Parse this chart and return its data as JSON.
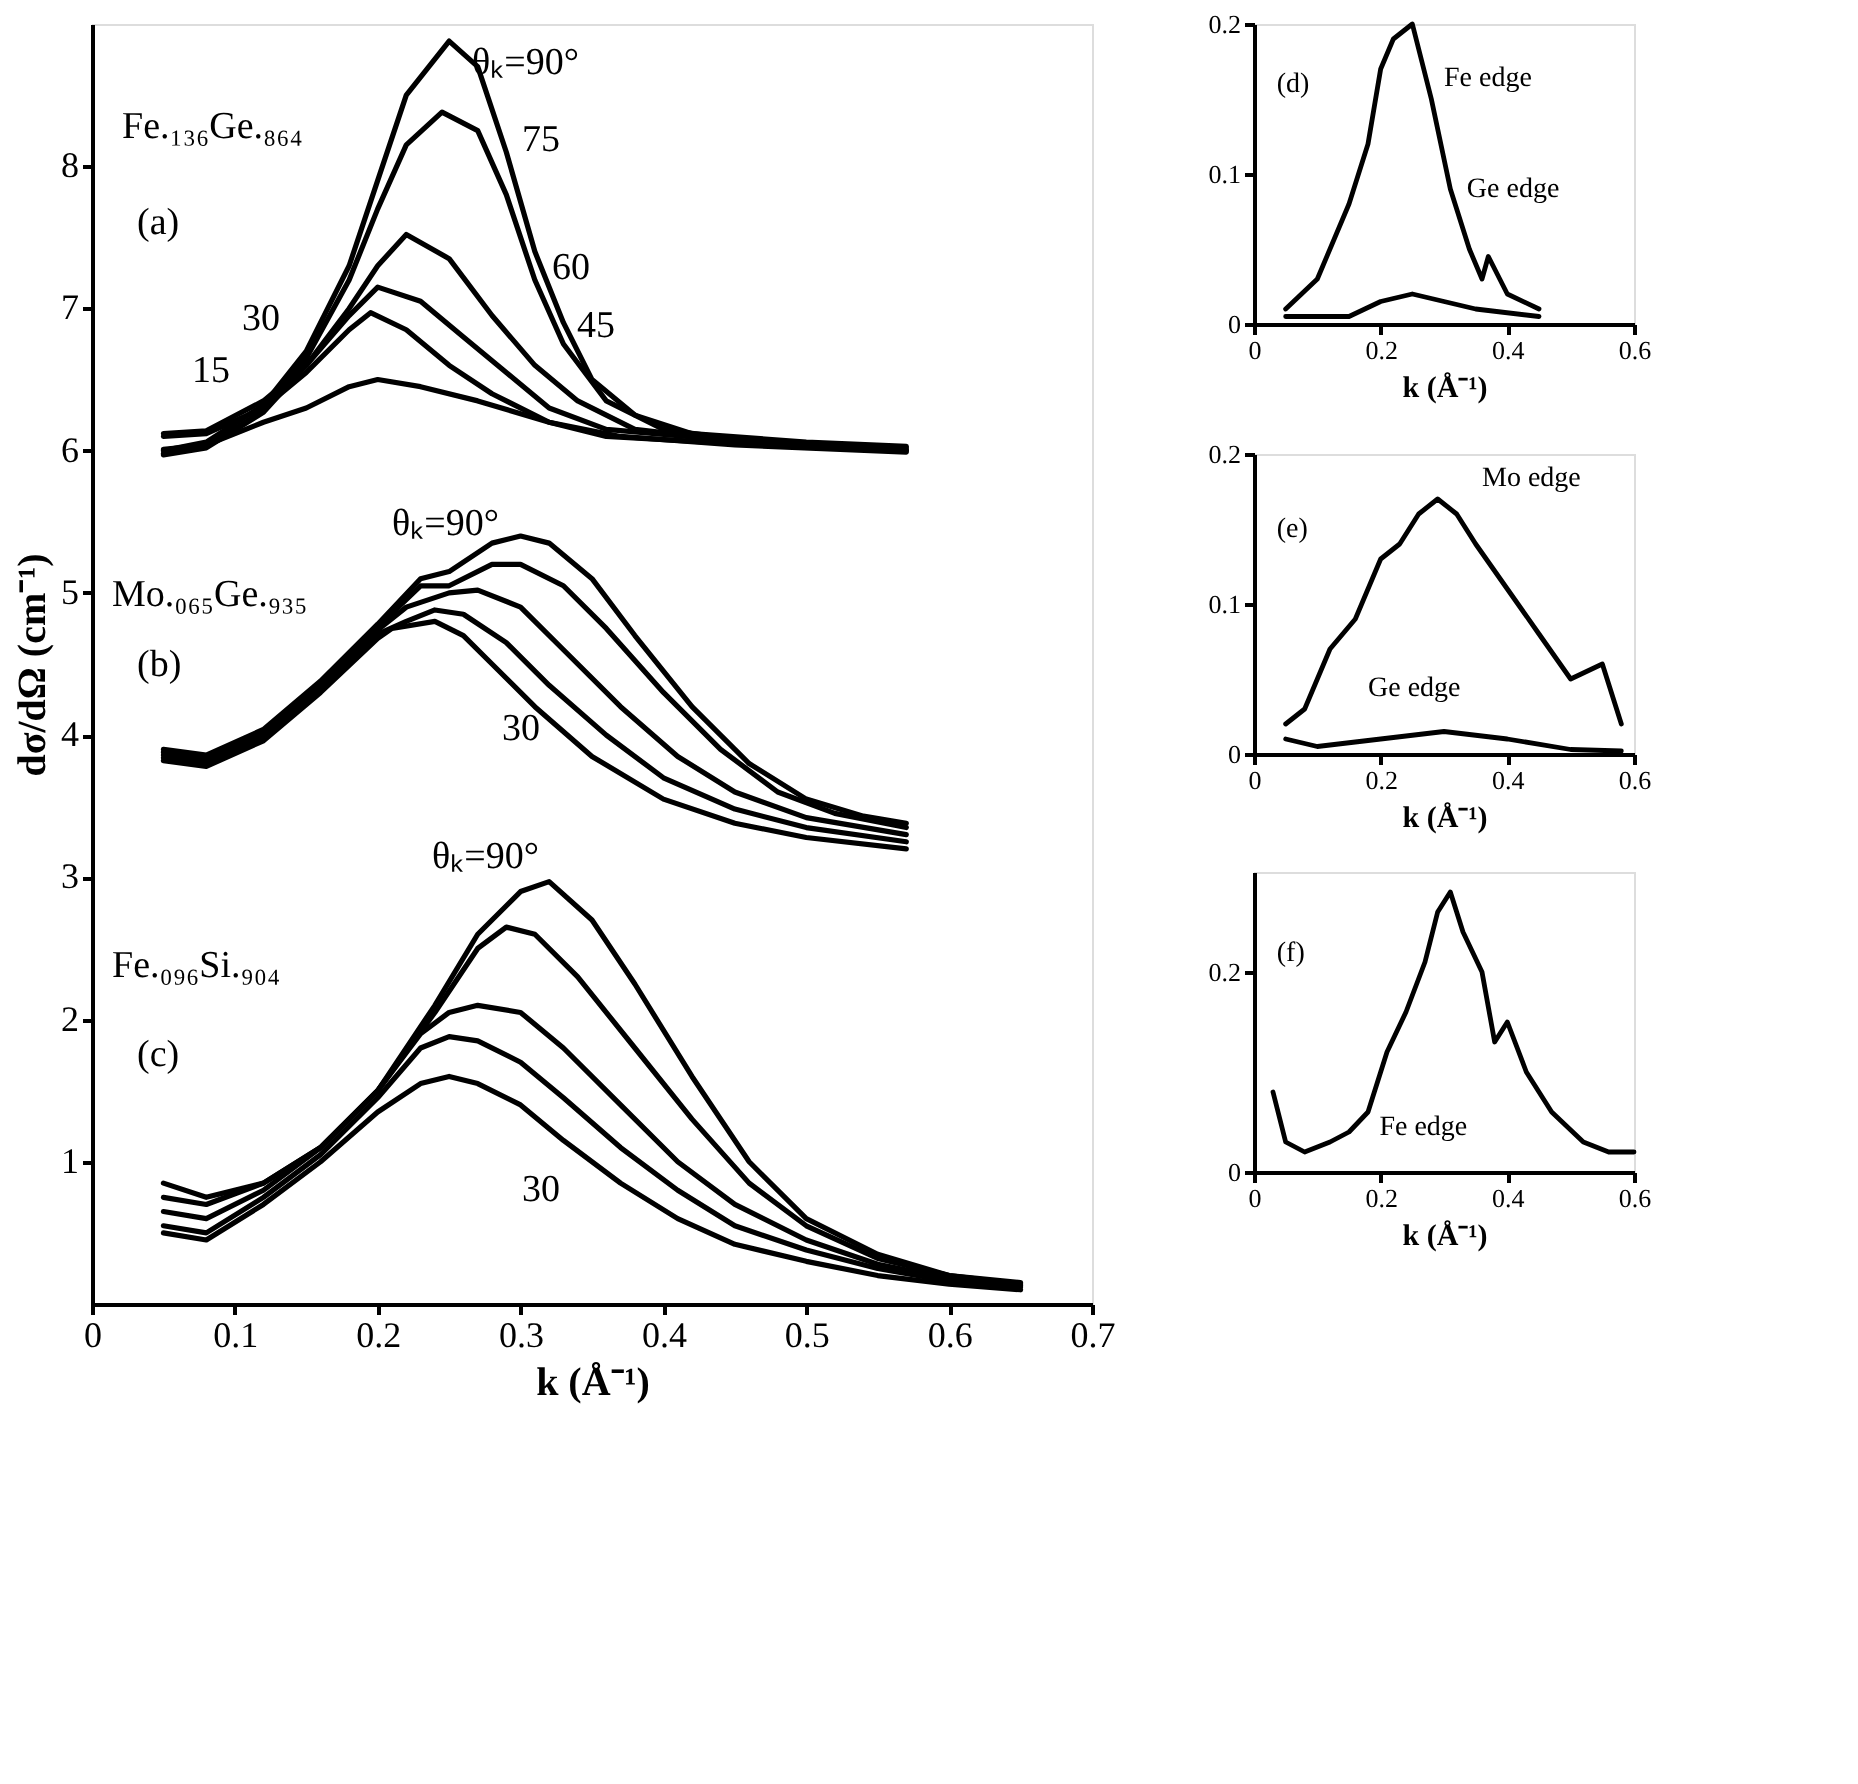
{
  "chart_data": [
    {
      "type": "line",
      "xlabel": "k (Å⁻¹)",
      "ylabel": "dσ/dΩ (cm⁻¹)",
      "xlim": [
        0,
        0.7
      ],
      "ylim": [
        0,
        9
      ],
      "xticks": [
        0,
        0.1,
        0.2,
        0.3,
        0.4,
        0.5,
        0.6,
        0.7
      ],
      "yticks": [
        1,
        2,
        3,
        4,
        5,
        6,
        7,
        8
      ],
      "grid": false,
      "series": [
        {
          "color": "#000000",
          "x": [
            0.05,
            0.08,
            0.12,
            0.15,
            0.18,
            0.2,
            0.22,
            0.25,
            0.27,
            0.29,
            0.31,
            0.33,
            0.35,
            0.38,
            0.42,
            0.5,
            0.57
          ],
          "values": [
            6.0,
            6.06,
            6.32,
            6.7,
            7.3,
            7.9,
            8.5,
            8.88,
            8.7,
            8.1,
            7.4,
            6.9,
            6.5,
            6.25,
            6.12,
            6.06,
            6.03
          ]
        },
        {
          "color": "#000000",
          "x": [
            0.05,
            0.08,
            0.12,
            0.15,
            0.18,
            0.2,
            0.22,
            0.245,
            0.27,
            0.29,
            0.31,
            0.33,
            0.36,
            0.4,
            0.45,
            0.57
          ],
          "values": [
            5.98,
            6.03,
            6.28,
            6.65,
            7.2,
            7.7,
            8.15,
            8.38,
            8.25,
            7.8,
            7.2,
            6.75,
            6.35,
            6.15,
            6.08,
            6.02
          ]
        },
        {
          "color": "#000000",
          "x": [
            0.05,
            0.08,
            0.12,
            0.15,
            0.18,
            0.2,
            0.22,
            0.25,
            0.28,
            0.31,
            0.34,
            0.38,
            0.45,
            0.57
          ],
          "values": [
            5.97,
            6.02,
            6.27,
            6.6,
            7.0,
            7.3,
            7.52,
            7.35,
            6.95,
            6.6,
            6.35,
            6.15,
            6.07,
            6.01
          ]
        },
        {
          "color": "#000000",
          "x": [
            0.05,
            0.08,
            0.12,
            0.15,
            0.18,
            0.2,
            0.23,
            0.26,
            0.29,
            0.32,
            0.36,
            0.45,
            0.57
          ],
          "values": [
            6.12,
            6.14,
            6.35,
            6.6,
            6.95,
            7.15,
            7.05,
            6.8,
            6.55,
            6.3,
            6.15,
            6.07,
            6.0
          ]
        },
        {
          "color": "#000000",
          "x": [
            0.05,
            0.08,
            0.12,
            0.15,
            0.18,
            0.195,
            0.22,
            0.25,
            0.28,
            0.32,
            0.36,
            0.45,
            0.57
          ],
          "values": [
            6.1,
            6.12,
            6.3,
            6.55,
            6.85,
            6.97,
            6.85,
            6.6,
            6.4,
            6.2,
            6.1,
            6.05,
            6.0
          ]
        },
        {
          "color": "#000000",
          "x": [
            0.05,
            0.08,
            0.12,
            0.15,
            0.18,
            0.2,
            0.23,
            0.27,
            0.32,
            0.37,
            0.45,
            0.57
          ],
          "values": [
            6.01,
            6.04,
            6.2,
            6.3,
            6.45,
            6.5,
            6.45,
            6.35,
            6.2,
            6.1,
            6.04,
            5.99
          ]
        },
        {
          "color": "#000000",
          "x": [
            0.05,
            0.08,
            0.12,
            0.16,
            0.2,
            0.23,
            0.25,
            0.28,
            0.3,
            0.32,
            0.35,
            0.38,
            0.42,
            0.46,
            0.5,
            0.54,
            0.57
          ],
          "values": [
            3.9,
            3.86,
            4.04,
            4.38,
            4.78,
            5.1,
            5.15,
            5.35,
            5.4,
            5.35,
            5.1,
            4.7,
            4.2,
            3.8,
            3.55,
            3.43,
            3.38
          ]
        },
        {
          "color": "#000000",
          "x": [
            0.05,
            0.08,
            0.12,
            0.16,
            0.2,
            0.23,
            0.25,
            0.28,
            0.3,
            0.33,
            0.36,
            0.4,
            0.44,
            0.48,
            0.52,
            0.57
          ],
          "values": [
            3.88,
            3.84,
            4.02,
            4.36,
            4.76,
            5.05,
            5.05,
            5.2,
            5.2,
            5.05,
            4.75,
            4.3,
            3.9,
            3.6,
            3.45,
            3.35
          ]
        },
        {
          "color": "#000000",
          "x": [
            0.05,
            0.08,
            0.12,
            0.16,
            0.2,
            0.22,
            0.25,
            0.27,
            0.3,
            0.33,
            0.37,
            0.41,
            0.45,
            0.5,
            0.57
          ],
          "values": [
            3.86,
            3.82,
            4.0,
            4.34,
            4.74,
            4.9,
            5.0,
            5.02,
            4.9,
            4.6,
            4.2,
            3.85,
            3.6,
            3.42,
            3.3
          ]
        },
        {
          "color": "#000000",
          "x": [
            0.05,
            0.08,
            0.12,
            0.16,
            0.2,
            0.22,
            0.24,
            0.26,
            0.29,
            0.32,
            0.36,
            0.4,
            0.45,
            0.5,
            0.57
          ],
          "values": [
            3.84,
            3.8,
            3.98,
            4.32,
            4.71,
            4.8,
            4.88,
            4.85,
            4.65,
            4.35,
            4.0,
            3.7,
            3.48,
            3.35,
            3.25
          ]
        },
        {
          "color": "#000000",
          "x": [
            0.05,
            0.08,
            0.12,
            0.16,
            0.2,
            0.21,
            0.24,
            0.26,
            0.28,
            0.31,
            0.35,
            0.4,
            0.45,
            0.5,
            0.57
          ],
          "values": [
            3.82,
            3.78,
            3.96,
            4.3,
            4.68,
            4.75,
            4.8,
            4.7,
            4.5,
            4.2,
            3.85,
            3.55,
            3.38,
            3.28,
            3.2
          ]
        },
        {
          "color": "#000000",
          "x": [
            0.05,
            0.08,
            0.12,
            0.16,
            0.2,
            0.24,
            0.27,
            0.3,
            0.32,
            0.35,
            0.38,
            0.42,
            0.46,
            0.5,
            0.55,
            0.6,
            0.65
          ],
          "values": [
            0.85,
            0.75,
            0.85,
            1.1,
            1.5,
            2.1,
            2.6,
            2.9,
            2.97,
            2.7,
            2.25,
            1.6,
            1.0,
            0.6,
            0.35,
            0.2,
            0.15
          ]
        },
        {
          "color": "#000000",
          "x": [
            0.05,
            0.08,
            0.12,
            0.16,
            0.2,
            0.24,
            0.27,
            0.29,
            0.31,
            0.34,
            0.38,
            0.42,
            0.46,
            0.5,
            0.55,
            0.6,
            0.65
          ],
          "values": [
            0.75,
            0.7,
            0.85,
            1.1,
            1.5,
            2.05,
            2.5,
            2.65,
            2.6,
            2.3,
            1.8,
            1.3,
            0.85,
            0.55,
            0.32,
            0.2,
            0.14
          ]
        },
        {
          "color": "#000000",
          "x": [
            0.05,
            0.08,
            0.12,
            0.16,
            0.2,
            0.23,
            0.25,
            0.27,
            0.3,
            0.33,
            0.37,
            0.41,
            0.45,
            0.5,
            0.55,
            0.6,
            0.65
          ],
          "values": [
            0.65,
            0.6,
            0.8,
            1.1,
            1.5,
            1.9,
            2.05,
            2.1,
            2.05,
            1.8,
            1.4,
            1.0,
            0.7,
            0.45,
            0.28,
            0.18,
            0.13
          ]
        },
        {
          "color": "#000000",
          "x": [
            0.05,
            0.08,
            0.12,
            0.16,
            0.2,
            0.23,
            0.25,
            0.27,
            0.3,
            0.33,
            0.37,
            0.41,
            0.45,
            0.5,
            0.55,
            0.6,
            0.65
          ],
          "values": [
            0.55,
            0.5,
            0.75,
            1.05,
            1.45,
            1.8,
            1.88,
            1.85,
            1.7,
            1.45,
            1.1,
            0.8,
            0.55,
            0.38,
            0.25,
            0.16,
            0.12
          ]
        },
        {
          "color": "#000000",
          "x": [
            0.05,
            0.08,
            0.12,
            0.16,
            0.2,
            0.23,
            0.25,
            0.27,
            0.3,
            0.33,
            0.37,
            0.41,
            0.45,
            0.5,
            0.55,
            0.6,
            0.65
          ],
          "values": [
            0.5,
            0.45,
            0.7,
            1.0,
            1.35,
            1.55,
            1.6,
            1.55,
            1.4,
            1.15,
            0.85,
            0.6,
            0.42,
            0.3,
            0.2,
            0.14,
            0.1
          ]
        }
      ],
      "annotations": [
        "Fe.₁₃₆Ge.₈₆₄",
        "(a)",
        "θₖ=90°",
        "75",
        "60",
        "45",
        "30",
        "15",
        "Mo.₀₆₅Ge.₉₃₅",
        "(b)",
        "θₖ=90°",
        "30",
        "Fe.₀₉₆Si.₉₀₄",
        "(c)",
        "θₖ=90°",
        "30"
      ]
    },
    {
      "type": "line",
      "xlabel": "k (Å⁻¹)",
      "xlim": [
        0,
        0.6
      ],
      "ylim": [
        0,
        0.2
      ],
      "xticks": [
        0,
        0.2,
        0.4,
        0.6
      ],
      "yticks": [
        0,
        0.1,
        0.2
      ],
      "grid": false,
      "series": [
        {
          "color": "#000000",
          "x": [
            0.05,
            0.1,
            0.15,
            0.18,
            0.2,
            0.22,
            0.25,
            0.28,
            0.31,
            0.34,
            0.36,
            0.37,
            0.4,
            0.45
          ],
          "values": [
            0.01,
            0.03,
            0.08,
            0.12,
            0.17,
            0.19,
            0.2,
            0.15,
            0.09,
            0.05,
            0.03,
            0.045,
            0.02,
            0.01
          ]
        },
        {
          "color": "#000000",
          "x": [
            0.05,
            0.15,
            0.2,
            0.25,
            0.3,
            0.35,
            0.45
          ],
          "values": [
            0.005,
            0.005,
            0.015,
            0.02,
            0.015,
            0.01,
            0.005
          ]
        }
      ],
      "annotations": [
        "(d)",
        "Fe edge",
        "Ge edge"
      ]
    },
    {
      "type": "line",
      "xlabel": "k (Å⁻¹)",
      "xlim": [
        0,
        0.6
      ],
      "ylim": [
        0,
        0.2
      ],
      "xticks": [
        0,
        0.2,
        0.4,
        0.6
      ],
      "yticks": [
        0,
        0.1,
        0.2
      ],
      "grid": false,
      "series": [
        {
          "color": "#000000",
          "x": [
            0.05,
            0.08,
            0.12,
            0.16,
            0.2,
            0.23,
            0.26,
            0.29,
            0.32,
            0.35,
            0.4,
            0.45,
            0.5,
            0.55,
            0.58
          ],
          "values": [
            0.02,
            0.03,
            0.07,
            0.09,
            0.13,
            0.14,
            0.16,
            0.17,
            0.16,
            0.14,
            0.11,
            0.08,
            0.05,
            0.06,
            0.02
          ]
        },
        {
          "color": "#000000",
          "x": [
            0.05,
            0.1,
            0.2,
            0.3,
            0.4,
            0.5,
            0.58
          ],
          "values": [
            0.01,
            0.005,
            0.01,
            0.015,
            0.01,
            0.003,
            0.002
          ]
        }
      ],
      "annotations": [
        "(e)",
        "Mo edge",
        "Ge edge"
      ]
    },
    {
      "type": "line",
      "xlabel": "k (Å⁻¹)",
      "xlim": [
        0,
        0.6
      ],
      "ylim": [
        0,
        0.3
      ],
      "xticks": [
        0,
        0.2,
        0.4,
        0.6
      ],
      "yticks": [
        0,
        0.2
      ],
      "grid": false,
      "series": [
        {
          "color": "#000000",
          "x": [
            0.03,
            0.05,
            0.08,
            0.12,
            0.15,
            0.18,
            0.21,
            0.24,
            0.27,
            0.29,
            0.31,
            0.33,
            0.36,
            0.38,
            0.4,
            0.43,
            0.47,
            0.52,
            0.56,
            0.6
          ],
          "values": [
            0.08,
            0.03,
            0.02,
            0.03,
            0.04,
            0.06,
            0.12,
            0.16,
            0.21,
            0.26,
            0.28,
            0.24,
            0.2,
            0.13,
            0.15,
            0.1,
            0.06,
            0.03,
            0.02,
            0.02
          ]
        }
      ],
      "annotations": [
        "(f)",
        "Fe edge"
      ]
    }
  ]
}
